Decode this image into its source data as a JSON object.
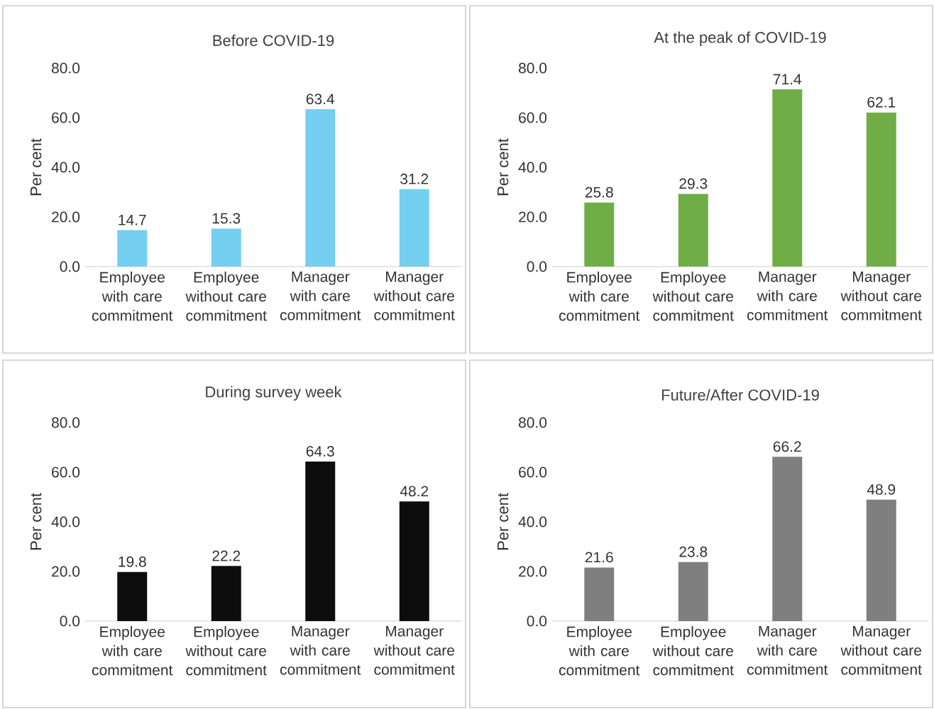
{
  "chart_data": [
    {
      "type": "bar",
      "title": "Before COVID-19",
      "ylabel": "Per cent",
      "categories": [
        "Employee with care commitment",
        "Employee without care commitment",
        "Manager with care commitment",
        "Manager without care commitment"
      ],
      "values": [
        14.7,
        15.3,
        63.4,
        31.2
      ],
      "color": "#75cff0",
      "ylim": [
        0,
        80
      ],
      "yticks": [
        {
          "value": 0,
          "label": "0.0"
        },
        {
          "value": 20,
          "label": "20.0"
        },
        {
          "value": 40,
          "label": "40.0"
        },
        {
          "value": 60,
          "label": "60.0"
        },
        {
          "value": 80,
          "label": "80.0"
        }
      ],
      "data_labels": true
    },
    {
      "type": "bar",
      "title": "At the peak of COVID-19",
      "ylabel": "Per cent",
      "categories": [
        "Employee with care commitment",
        "Employee without care commitment",
        "Manager with care commitment",
        "Manager without care commitment"
      ],
      "values": [
        25.8,
        29.3,
        71.4,
        62.1
      ],
      "color": "#70ad47",
      "ylim": [
        0,
        80
      ],
      "yticks": [
        {
          "value": 0,
          "label": "0.0"
        },
        {
          "value": 20,
          "label": "20.0"
        },
        {
          "value": 40,
          "label": "40.0"
        },
        {
          "value": 60,
          "label": "60.0"
        },
        {
          "value": 80,
          "label": "80.0"
        }
      ],
      "data_labels": true
    },
    {
      "type": "bar",
      "title": "During survey week",
      "ylabel": "Per cent",
      "categories": [
        "Employee with care commitment",
        "Employee without care commitment",
        "Manager with care commitment",
        "Manager without care commitment"
      ],
      "values": [
        19.8,
        22.2,
        64.3,
        48.2
      ],
      "color": "#0d0d0d",
      "ylim": [
        0,
        80
      ],
      "yticks": [
        {
          "value": 0,
          "label": "0.0"
        },
        {
          "value": 20,
          "label": "20.0"
        },
        {
          "value": 40,
          "label": "40.0"
        },
        {
          "value": 60,
          "label": "60.0"
        },
        {
          "value": 80,
          "label": "80.0"
        }
      ],
      "data_labels": true
    },
    {
      "type": "bar",
      "title": "Future/After COVID-19",
      "ylabel": "Per cent",
      "categories": [
        "Employee with care commitment",
        "Employee without care commitment",
        "Manager with care commitment",
        "Manager without care commitment"
      ],
      "values": [
        21.6,
        23.8,
        66.2,
        48.9
      ],
      "color": "#7f7f7f",
      "ylim": [
        0,
        80
      ],
      "yticks": [
        {
          "value": 0,
          "label": "0.0"
        },
        {
          "value": 20,
          "label": "20.0"
        },
        {
          "value": 40,
          "label": "40.0"
        },
        {
          "value": 60,
          "label": "60.0"
        },
        {
          "value": 80,
          "label": "80.0"
        }
      ],
      "data_labels": true
    }
  ]
}
